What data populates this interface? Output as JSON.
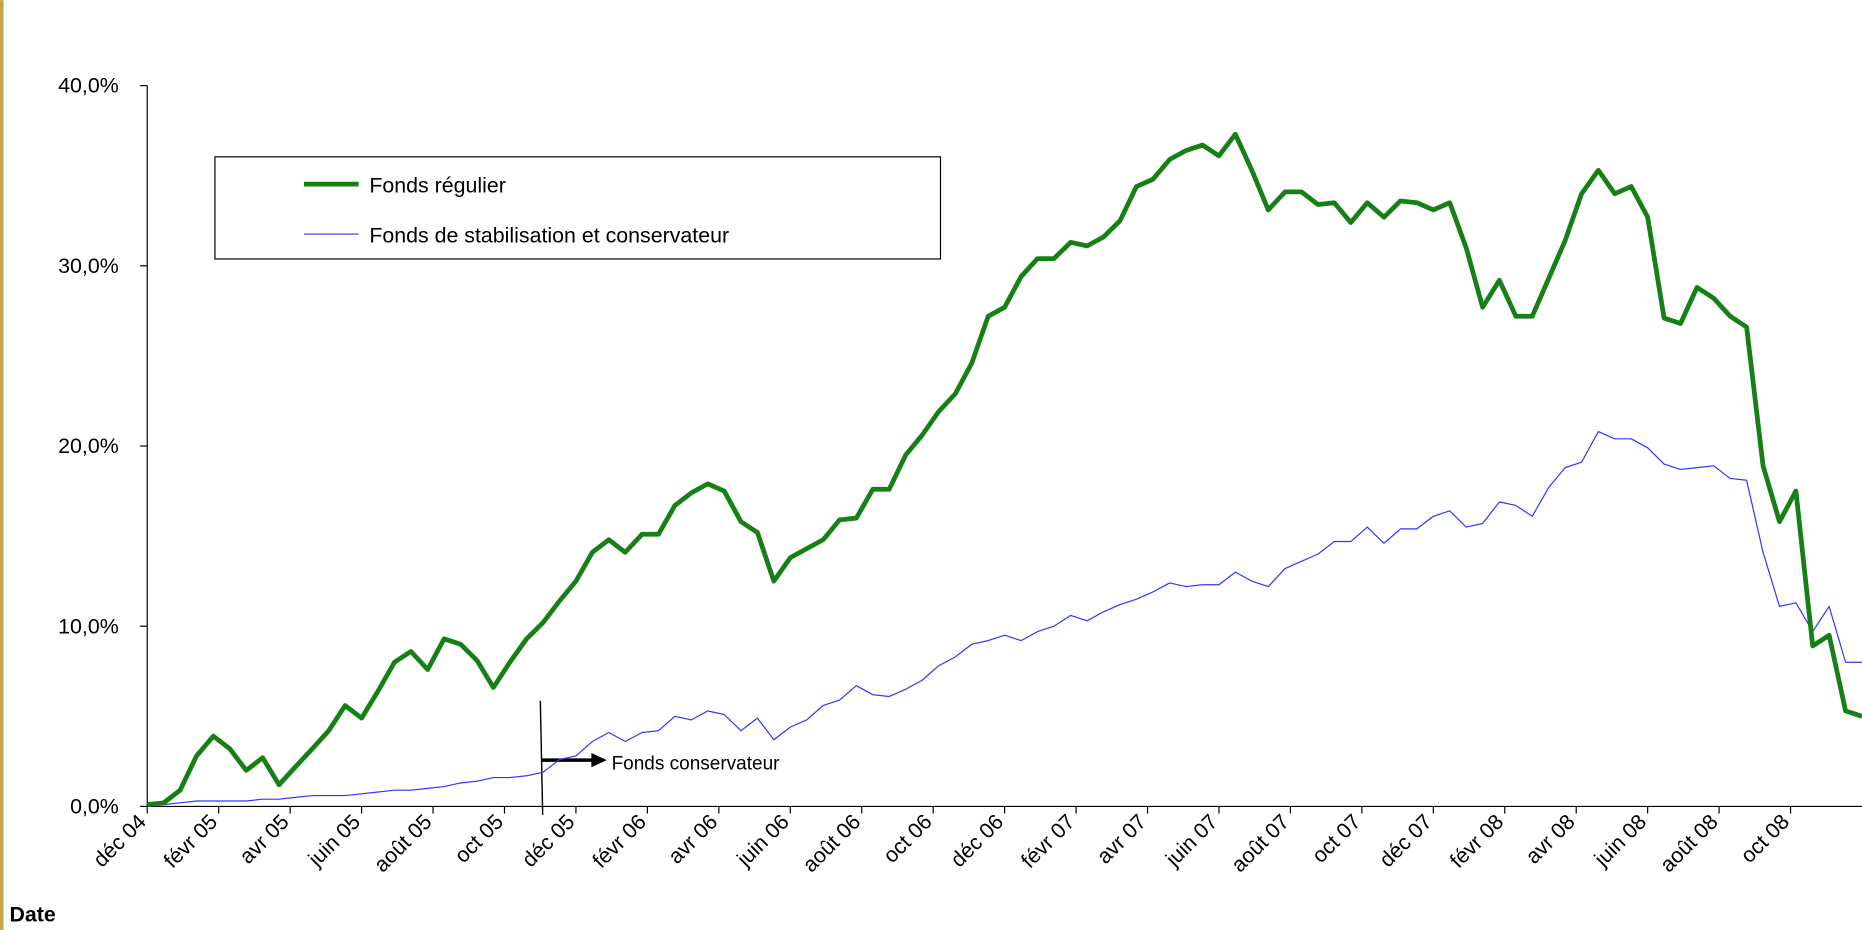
{
  "chart_data": {
    "type": "line",
    "x_label": "Date",
    "annotation": "Fonds conservateur",
    "x": [
      0,
      0.46,
      0.92,
      1.38,
      1.85,
      2.31,
      2.77,
      3.23,
      3.69,
      4.15,
      4.62,
      5.08,
      5.54,
      6.0,
      6.46,
      6.92,
      7.38,
      7.85,
      8.31,
      8.77,
      9.23,
      9.69,
      10.15,
      10.62,
      11.08,
      11.54,
      12.0,
      12.46,
      12.92,
      13.38,
      13.85,
      14.31,
      14.77,
      15.23,
      15.69,
      16.15,
      16.62,
      17.08,
      17.54,
      18.0,
      18.46,
      18.92,
      19.38,
      19.85,
      20.31,
      20.77,
      21.23,
      21.69,
      22.15,
      22.62,
      23.08,
      23.54,
      24.0,
      24.46,
      24.92,
      25.38,
      25.85,
      26.31,
      26.77,
      27.23,
      27.69,
      28.15,
      28.62,
      29.08,
      29.54,
      30.0,
      30.46,
      30.92,
      31.38,
      31.85,
      32.31,
      32.77,
      33.23,
      33.69,
      34.15,
      34.62,
      35.08,
      35.54,
      36.0,
      36.46,
      36.92,
      37.38,
      37.85,
      38.31,
      38.77,
      39.23,
      39.69,
      40.15,
      40.62,
      41.08,
      41.54,
      42.0,
      42.46,
      42.92,
      43.38,
      43.85,
      44.31,
      44.77,
      45.23,
      45.69,
      46.15,
      46.62,
      47.08,
      47.54,
      48.0
    ],
    "series": [
      {
        "name": "Fonds régulier",
        "color": "#168016",
        "width": 4,
        "values": [
          0.1,
          0.2,
          0.9,
          2.8,
          3.9,
          3.2,
          2.0,
          2.7,
          1.2,
          2.2,
          3.2,
          4.2,
          5.6,
          4.9,
          6.4,
          8.0,
          8.6,
          7.6,
          9.3,
          9.0,
          8.1,
          6.6,
          8.0,
          9.3,
          10.2,
          11.4,
          12.5,
          14.1,
          14.8,
          14.1,
          15.1,
          15.1,
          16.7,
          17.4,
          17.9,
          17.5,
          15.8,
          15.2,
          12.5,
          13.8,
          14.3,
          14.8,
          15.9,
          16.0,
          17.6,
          17.6,
          19.5,
          20.6,
          21.9,
          22.9,
          24.6,
          27.2,
          27.7,
          29.4,
          30.4,
          30.4,
          31.3,
          31.1,
          31.6,
          32.5,
          34.4,
          34.8,
          35.9,
          36.4,
          36.7,
          36.1,
          37.3,
          35.3,
          33.1,
          34.1,
          34.1,
          33.4,
          33.5,
          32.4,
          33.5,
          32.7,
          33.6,
          33.5,
          33.1,
          33.5,
          31.0,
          27.7,
          29.2,
          27.2,
          27.2,
          29.3,
          31.4,
          34.0,
          35.3,
          34.0,
          34.4,
          32.7,
          27.1,
          26.8,
          28.8,
          28.2,
          27.2,
          26.6,
          18.9,
          15.8,
          17.5,
          8.9,
          9.5,
          5.3,
          5.0
        ]
      },
      {
        "name": "Fonds de stabilisation et conservateur",
        "color": "#3333ff",
        "width": 1,
        "values": [
          0.0,
          0.1,
          0.2,
          0.3,
          0.3,
          0.3,
          0.3,
          0.4,
          0.4,
          0.5,
          0.6,
          0.6,
          0.6,
          0.7,
          0.8,
          0.9,
          0.9,
          1.0,
          1.1,
          1.3,
          1.4,
          1.6,
          1.6,
          1.7,
          1.9,
          2.6,
          2.8,
          3.6,
          4.1,
          3.6,
          4.1,
          4.2,
          5.0,
          4.8,
          5.3,
          5.1,
          4.2,
          4.9,
          3.7,
          4.4,
          4.8,
          5.6,
          5.9,
          6.7,
          6.2,
          6.1,
          6.5,
          7.0,
          7.8,
          8.3,
          9.0,
          9.2,
          9.5,
          9.2,
          9.7,
          10.0,
          10.6,
          10.3,
          10.8,
          11.2,
          11.5,
          11.9,
          12.4,
          12.2,
          12.3,
          12.3,
          13.0,
          12.5,
          12.2,
          13.2,
          13.6,
          14.0,
          14.7,
          14.7,
          15.5,
          14.6,
          15.4,
          15.4,
          16.1,
          16.4,
          15.5,
          15.7,
          16.9,
          16.7,
          16.1,
          17.7,
          18.8,
          19.1,
          20.8,
          20.4,
          20.4,
          19.9,
          19.0,
          18.7,
          18.8,
          18.9,
          18.2,
          18.1,
          14.1,
          11.1,
          11.3,
          9.7,
          11.1,
          8.0,
          8.0
        ]
      }
    ],
    "xlim": [
      0,
      48
    ],
    "xticks": [
      {
        "value": 0,
        "label": "déc 04"
      },
      {
        "value": 2,
        "label": "févr 05"
      },
      {
        "value": 4,
        "label": "avr 05"
      },
      {
        "value": 6,
        "label": "juin 05"
      },
      {
        "value": 8,
        "label": "août 05"
      },
      {
        "value": 10,
        "label": "oct 05"
      },
      {
        "value": 12,
        "label": "déc 05"
      },
      {
        "value": 14,
        "label": "févr 06"
      },
      {
        "value": 16,
        "label": "avr 06"
      },
      {
        "value": 18,
        "label": "juin 06"
      },
      {
        "value": 20,
        "label": "août 06"
      },
      {
        "value": 22,
        "label": "oct 06"
      },
      {
        "value": 24,
        "label": "déc 06"
      },
      {
        "value": 26,
        "label": "févr 07"
      },
      {
        "value": 28,
        "label": "avr 07"
      },
      {
        "value": 30,
        "label": "juin 07"
      },
      {
        "value": 32,
        "label": "août 07"
      },
      {
        "value": 34,
        "label": "oct 07"
      },
      {
        "value": 36,
        "label": "déc 07"
      },
      {
        "value": 38,
        "label": "févr 08"
      },
      {
        "value": 40,
        "label": "avr 08"
      },
      {
        "value": 42,
        "label": "juin 08"
      },
      {
        "value": 44,
        "label": "août 08"
      },
      {
        "value": 46,
        "label": "oct 08"
      }
    ],
    "ylim": [
      0,
      40
    ],
    "yticks": [
      {
        "value": 0,
        "label": "0,0%"
      },
      {
        "value": 10,
        "label": "10,0%"
      },
      {
        "value": 20,
        "label": "20,0%"
      },
      {
        "value": 30,
        "label": "30,0%"
      },
      {
        "value": 40,
        "label": "40,0%"
      }
    ],
    "grid": false
  }
}
